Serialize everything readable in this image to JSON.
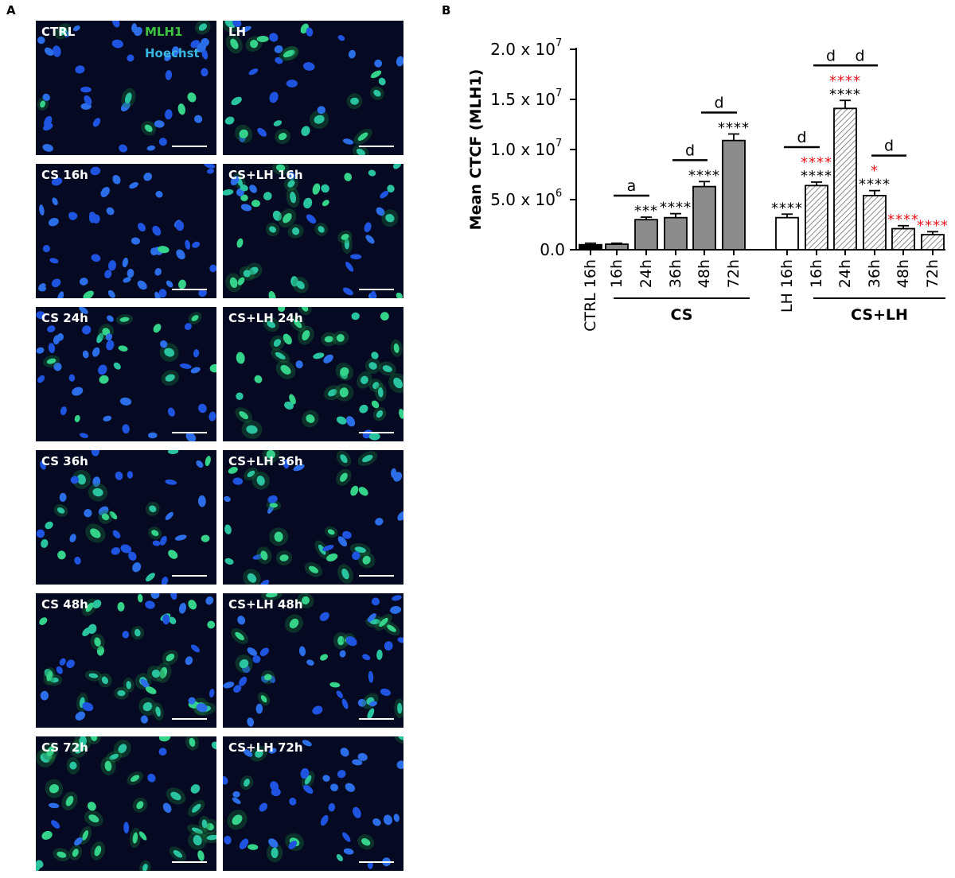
{
  "panel_a": {
    "letter": "A",
    "channels": {
      "mlh1": "MLH1",
      "hoechst": "Hoechst"
    },
    "images": [
      {
        "label": "CTRL",
        "green": 0.15
      },
      {
        "label": "LH",
        "green": 0.55
      },
      {
        "label": "CS 16h",
        "green": 0.05
      },
      {
        "label": "CS+LH 16h",
        "green": 0.7
      },
      {
        "label": "CS 24h",
        "green": 0.35
      },
      {
        "label": "CS+LH 24h",
        "green": 0.9
      },
      {
        "label": "CS 36h",
        "green": 0.35
      },
      {
        "label": "CS+LH 36h",
        "green": 0.6
      },
      {
        "label": "CS 48h",
        "green": 0.65
      },
      {
        "label": "CS+LH 48h",
        "green": 0.35
      },
      {
        "label": "CS 72h",
        "green": 0.85
      },
      {
        "label": "CS+LH 72h",
        "green": 0.15
      }
    ]
  },
  "panel_b": {
    "letter": "B"
  },
  "chart_data": {
    "type": "bar",
    "ylabel": "Mean CTCF (MLH1)",
    "ylim": [
      0,
      20000000
    ],
    "yticks": [
      {
        "value": 0,
        "label": "0.0",
        "exp": ""
      },
      {
        "value": 5000000,
        "label": "5.0 x 10",
        "exp": "6"
      },
      {
        "value": 10000000,
        "label": "1.0 x 10",
        "exp": "7"
      },
      {
        "value": 15000000,
        "label": "1.5 x 10",
        "exp": "7"
      },
      {
        "value": 20000000,
        "label": "2.0 x 10",
        "exp": "7"
      }
    ],
    "bars": [
      {
        "label": "CTRL 16h",
        "value": 500000,
        "error": 150000,
        "style": "black",
        "sig": "",
        "sig_red": ""
      },
      {
        "label": "16h",
        "value": 550000,
        "error": 100000,
        "style": "gray",
        "sig": "",
        "sig_red": ""
      },
      {
        "label": "24h",
        "value": 3000000,
        "error": 250000,
        "style": "gray",
        "sig": "***",
        "sig_red": ""
      },
      {
        "label": "36h",
        "value": 3200000,
        "error": 400000,
        "style": "gray",
        "sig": "****",
        "sig_red": ""
      },
      {
        "label": "48h",
        "value": 6300000,
        "error": 500000,
        "style": "gray",
        "sig": "****",
        "sig_red": ""
      },
      {
        "label": "72h",
        "value": 10900000,
        "error": 650000,
        "style": "gray",
        "sig": "****",
        "sig_red": ""
      },
      {
        "label": "LH 16h",
        "value": 3200000,
        "error": 350000,
        "style": "white",
        "sig": "****",
        "sig_red": ""
      },
      {
        "label": "16h",
        "value": 6400000,
        "error": 350000,
        "style": "hatch",
        "sig": "****",
        "sig_red": "****"
      },
      {
        "label": "24h",
        "value": 14100000,
        "error": 800000,
        "style": "hatch",
        "sig": "****",
        "sig_red": "****"
      },
      {
        "label": "36h",
        "value": 5400000,
        "error": 500000,
        "style": "hatch",
        "sig": "****",
        "sig_red": "*"
      },
      {
        "label": "48h",
        "value": 2100000,
        "error": 300000,
        "style": "hatch",
        "sig": "",
        "sig_red": "****"
      },
      {
        "label": "72h",
        "value": 1500000,
        "error": 300000,
        "style": "hatch",
        "sig": "",
        "sig_red": "****"
      }
    ],
    "comparisons": [
      {
        "from": 1,
        "to": 2,
        "letter": "a"
      },
      {
        "from": 3,
        "to": 4,
        "letter": "d"
      },
      {
        "from": 4,
        "to": 5,
        "letter": "d"
      },
      {
        "from": 6,
        "to": 7,
        "letter": "d"
      },
      {
        "from": 7,
        "to": 8,
        "letter": "d"
      },
      {
        "from": 8,
        "to": 9,
        "letter": "d"
      },
      {
        "from": 9,
        "to": 10,
        "letter": "d"
      }
    ],
    "groups": [
      {
        "label": "CS",
        "from": 1,
        "to": 5
      },
      {
        "label": "CS+LH",
        "from": 7,
        "to": 11
      }
    ],
    "colors": {
      "black": "#000000",
      "gray": "#8c8c8c",
      "white": "#ffffff",
      "hatch": "#ffffff",
      "sig_red": "#e8161d"
    }
  }
}
